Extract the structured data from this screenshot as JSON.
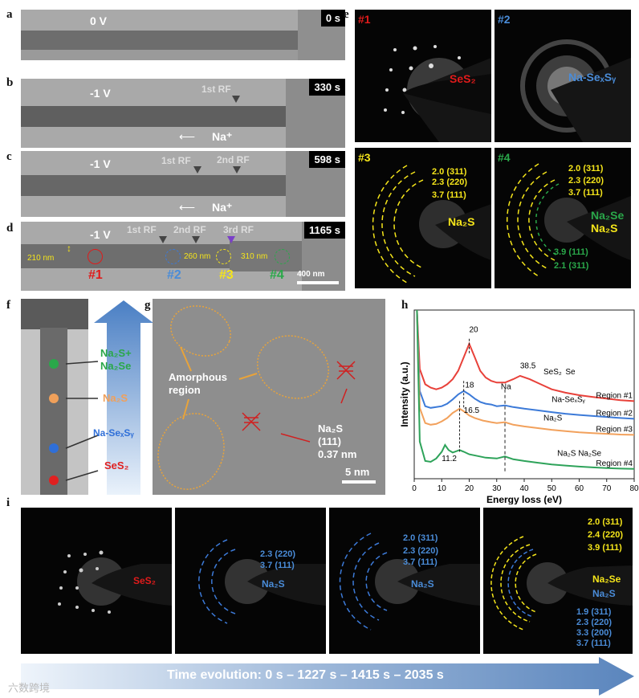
{
  "panels": {
    "a": {
      "letter": "a",
      "voltage": "0 V",
      "time": "0 s"
    },
    "b": {
      "letter": "b",
      "voltage": "-1 V",
      "time": "330 s",
      "rf1": "1st RF",
      "ion": "Na⁺"
    },
    "c": {
      "letter": "c",
      "voltage": "-1 V",
      "time": "598 s",
      "rf1": "1st RF",
      "rf2": "2nd RF",
      "ion": "Na⁺"
    },
    "d": {
      "letter": "d",
      "voltage": "-1 V",
      "time": "1165 s",
      "rf1": "1st RF",
      "rf2": "2nd RF",
      "rf3": "3rd RF",
      "w1": "210 nm",
      "w2": "260 nm",
      "w3": "310 nm",
      "scale": "400 nm",
      "regions": [
        "#1",
        "#2",
        "#3",
        "#4"
      ]
    },
    "e": {
      "letter": "e",
      "p1": {
        "id": "#1",
        "phase": "SeS₂"
      },
      "p2": {
        "id": "#2",
        "phase": "Na-SeₓSᵧ"
      },
      "p3": {
        "id": "#3",
        "phase": "Na₂S",
        "rings": [
          "2.0 (311)",
          "2.3 (220)",
          "3.7 (111)"
        ]
      },
      "p4": {
        "id": "#4",
        "phase1": "Na₂Se",
        "phase2": "Na₂S",
        "rings": [
          "2.0 (311)",
          "2.3 (220)",
          "3.7 (111)"
        ],
        "rings2": [
          "3.9 (111)",
          "2.1 (311)"
        ]
      }
    },
    "f": {
      "letter": "f",
      "labels": [
        "Na₂S+",
        "Na₂Se",
        "Na₂S",
        "Na-SeₓSᵧ",
        "SeS₂"
      ],
      "colors": {
        "green": "#2aa84a",
        "orange": "#f0a05a",
        "blue": "#2f6fd8",
        "red": "#e02020"
      }
    },
    "g": {
      "letter": "g",
      "amorphous": "Amorphous region",
      "amorphous_l1": "Amorphous",
      "amorphous_l2": "region",
      "na2s_l1": "Na₂S",
      "na2s_l2": "(111)",
      "na2s_l3": "0.37 nm",
      "scale": "5 nm"
    },
    "h": {
      "letter": "h",
      "ylabel": "Intensity (a.u.)",
      "xlabel": "Energy loss (eV)",
      "peak_labels": [
        "20",
        "38.5",
        "SeS₂",
        "Se",
        "18",
        "Na",
        "16.5",
        "11.2",
        "Na₂S",
        "Na₂S Na₂Se",
        "Na-SeₓSᵧ"
      ],
      "regions": [
        "Region #1",
        "Region #2",
        "Region #3",
        "Region #4"
      ]
    },
    "i": {
      "letter": "i",
      "p1": {
        "phase": "SeS₂"
      },
      "p2": {
        "phase": "Na₂S",
        "rings": [
          "2.3 (220)",
          "3.7 (111)"
        ]
      },
      "p3": {
        "phase": "Na₂S",
        "rings": [
          "2.0 (311)",
          "2.3 (220)",
          "3.7 (111)"
        ]
      },
      "p4": {
        "phase1": "Na₂Se",
        "phase2": "Na₂S",
        "rings_y": [
          "2.0 (311)",
          "2.4 (220)",
          "3.9 (111)"
        ],
        "rings_b": [
          "1.9 (311)",
          "2.3 (220)",
          "3.3 (200)",
          "3.7 (111)"
        ]
      },
      "arrow": "Time evolution:  0 s – 1227 s – 1415 s – 2035 s"
    },
    "watermark": "六数跨境"
  },
  "chart_data": {
    "type": "line",
    "xlabel": "Energy loss (eV)",
    "ylabel": "Intensity (a.u.)",
    "xlim": [
      0,
      80
    ],
    "xticks": [
      0,
      10,
      20,
      30,
      40,
      50,
      60,
      70,
      80
    ],
    "series": [
      {
        "name": "Region #1",
        "color": "#e8413a",
        "x": [
          1,
          2,
          4,
          6,
          8,
          10,
          12,
          14,
          16,
          18,
          20,
          22,
          24,
          26,
          28,
          30,
          33,
          36,
          38.5,
          42,
          46,
          50,
          55,
          60,
          65,
          70,
          75,
          80
        ],
        "y": [
          10,
          6.5,
          5.6,
          5.4,
          5.3,
          5.4,
          5.6,
          5.9,
          6.4,
          7.2,
          8.0,
          7.2,
          6.4,
          6.0,
          5.8,
          5.7,
          5.7,
          5.9,
          6.1,
          5.9,
          5.6,
          5.3,
          5.1,
          4.95,
          4.85,
          4.75,
          4.65,
          4.6
        ]
      },
      {
        "name": "Region #2",
        "color": "#3c7ad8",
        "x": [
          1,
          2,
          4,
          6,
          8,
          10,
          12,
          14,
          16,
          18,
          20,
          22,
          24,
          26,
          28,
          30,
          33,
          36,
          40,
          45,
          50,
          55,
          60,
          65,
          70,
          75,
          80
        ],
        "y": [
          10,
          5.2,
          4.3,
          4.2,
          4.25,
          4.3,
          4.45,
          4.7,
          5.0,
          5.2,
          5.0,
          4.75,
          4.55,
          4.45,
          4.4,
          4.3,
          4.35,
          4.25,
          4.15,
          4.05,
          3.95,
          3.85,
          3.78,
          3.72,
          3.66,
          3.6,
          3.55
        ]
      },
      {
        "name": "Region #3",
        "color": "#f2a15c",
        "x": [
          1,
          2,
          4,
          6,
          8,
          10,
          12,
          14,
          16.5,
          18,
          20,
          22,
          25,
          28,
          30,
          33,
          36,
          40,
          45,
          50,
          55,
          60,
          65,
          70,
          75,
          80
        ],
        "y": [
          10,
          4.2,
          3.3,
          3.2,
          3.25,
          3.4,
          3.6,
          3.9,
          4.15,
          4.0,
          3.75,
          3.6,
          3.45,
          3.35,
          3.3,
          3.35,
          3.2,
          3.1,
          3.0,
          2.9,
          2.82,
          2.75,
          2.7,
          2.66,
          2.62,
          2.6
        ]
      },
      {
        "name": "Region #4",
        "color": "#2ea35a",
        "x": [
          1,
          2,
          4,
          6,
          8,
          10,
          11.2,
          12.5,
          14,
          16.5,
          18,
          20,
          23,
          26,
          30,
          33,
          36,
          40,
          45,
          50,
          55,
          60,
          65,
          70,
          75,
          80
        ],
        "y": [
          10,
          2.2,
          1.05,
          1.0,
          1.2,
          1.6,
          2.0,
          1.7,
          1.55,
          1.7,
          1.6,
          1.45,
          1.35,
          1.25,
          1.2,
          1.32,
          1.15,
          1.05,
          0.95,
          0.85,
          0.78,
          0.72,
          0.67,
          0.63,
          0.6,
          0.58
        ]
      }
    ]
  }
}
